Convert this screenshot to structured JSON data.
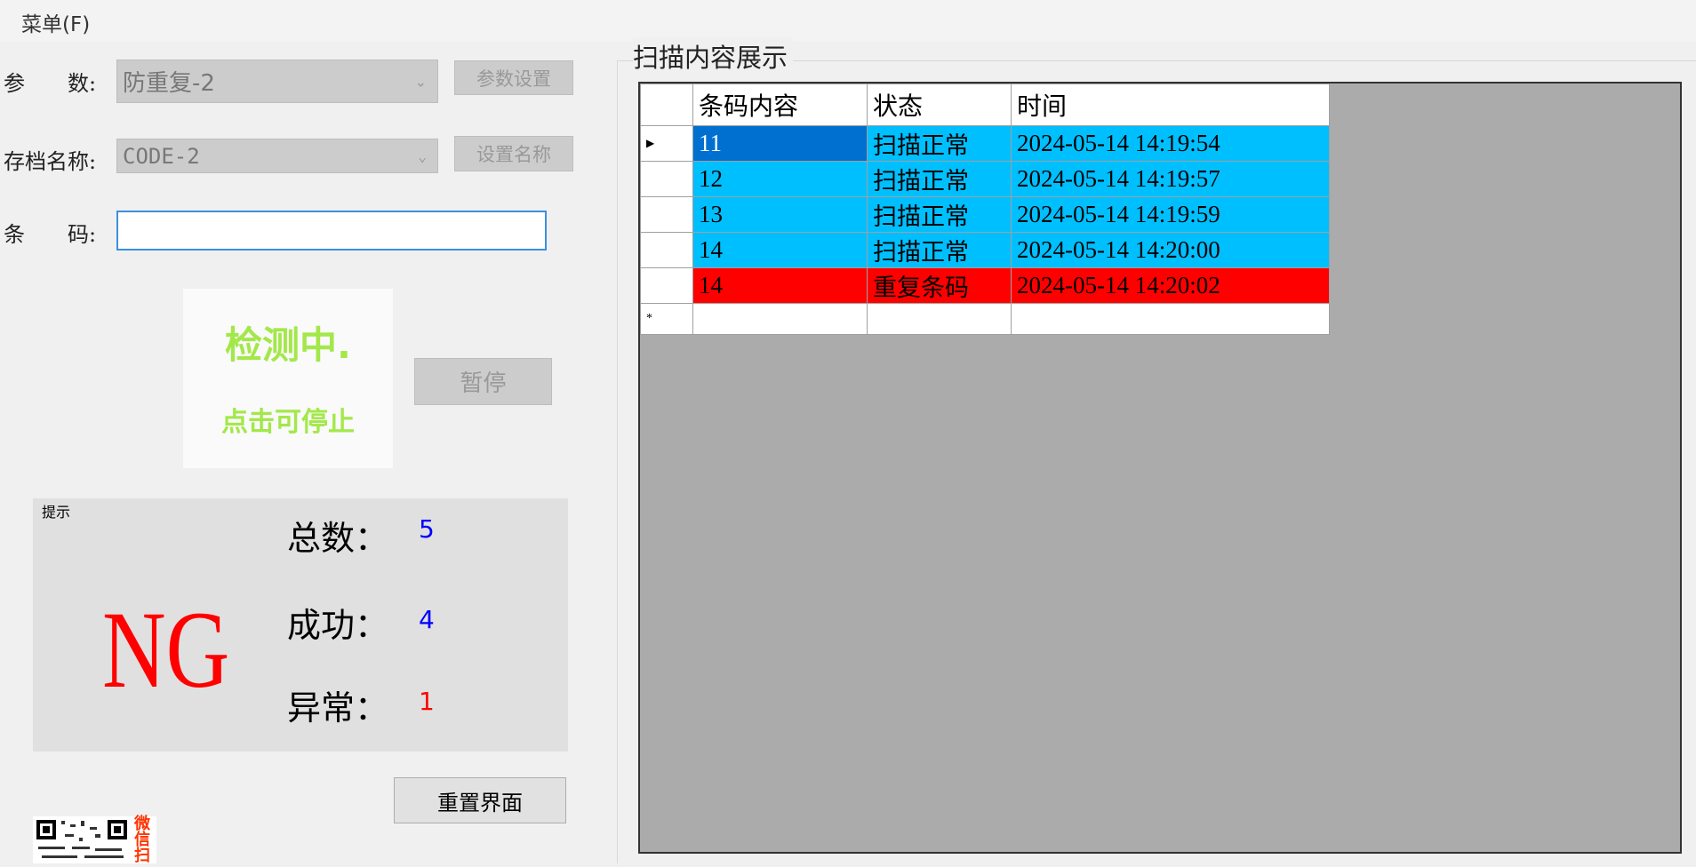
{
  "menu": {
    "file": "菜单(F)"
  },
  "params": {
    "label": "参　　数:",
    "value": "防重复-2",
    "button": "参数设置"
  },
  "archive": {
    "label": "存档名称:",
    "value": "CODE-2",
    "button": "设置名称"
  },
  "barcode": {
    "label": "条　　码:",
    "value": ""
  },
  "status": {
    "title": "检测中.",
    "hint": "点击可停止",
    "pause": "暂停"
  },
  "tips": {
    "title": "提示",
    "result": "NG",
    "total_label": "总数：",
    "total": "5",
    "success_label": "成功：",
    "success": "4",
    "error_label": "异常：",
    "error": "1"
  },
  "reset": "重置界面",
  "qr": {
    "caption": "微信扫"
  },
  "grid": {
    "title": "扫描内容展示",
    "columns": [
      "条码内容",
      "状态",
      "时间"
    ],
    "rows": [
      {
        "code": "11",
        "state": "扫描正常",
        "time": "2024-05-14 14:19:54",
        "kind": "ok",
        "selected": true
      },
      {
        "code": "12",
        "state": "扫描正常",
        "time": "2024-05-14 14:19:57",
        "kind": "ok"
      },
      {
        "code": "13",
        "state": "扫描正常",
        "time": "2024-05-14 14:19:59",
        "kind": "ok"
      },
      {
        "code": "14",
        "state": "扫描正常",
        "time": "2024-05-14 14:20:00",
        "kind": "ok"
      },
      {
        "code": "14",
        "state": "重复条码",
        "time": "2024-05-14 14:20:02",
        "kind": "dup"
      }
    ],
    "colors": {
      "ok": "#00bfff",
      "dup": "#ff0000",
      "selected": "#0070d0"
    }
  }
}
